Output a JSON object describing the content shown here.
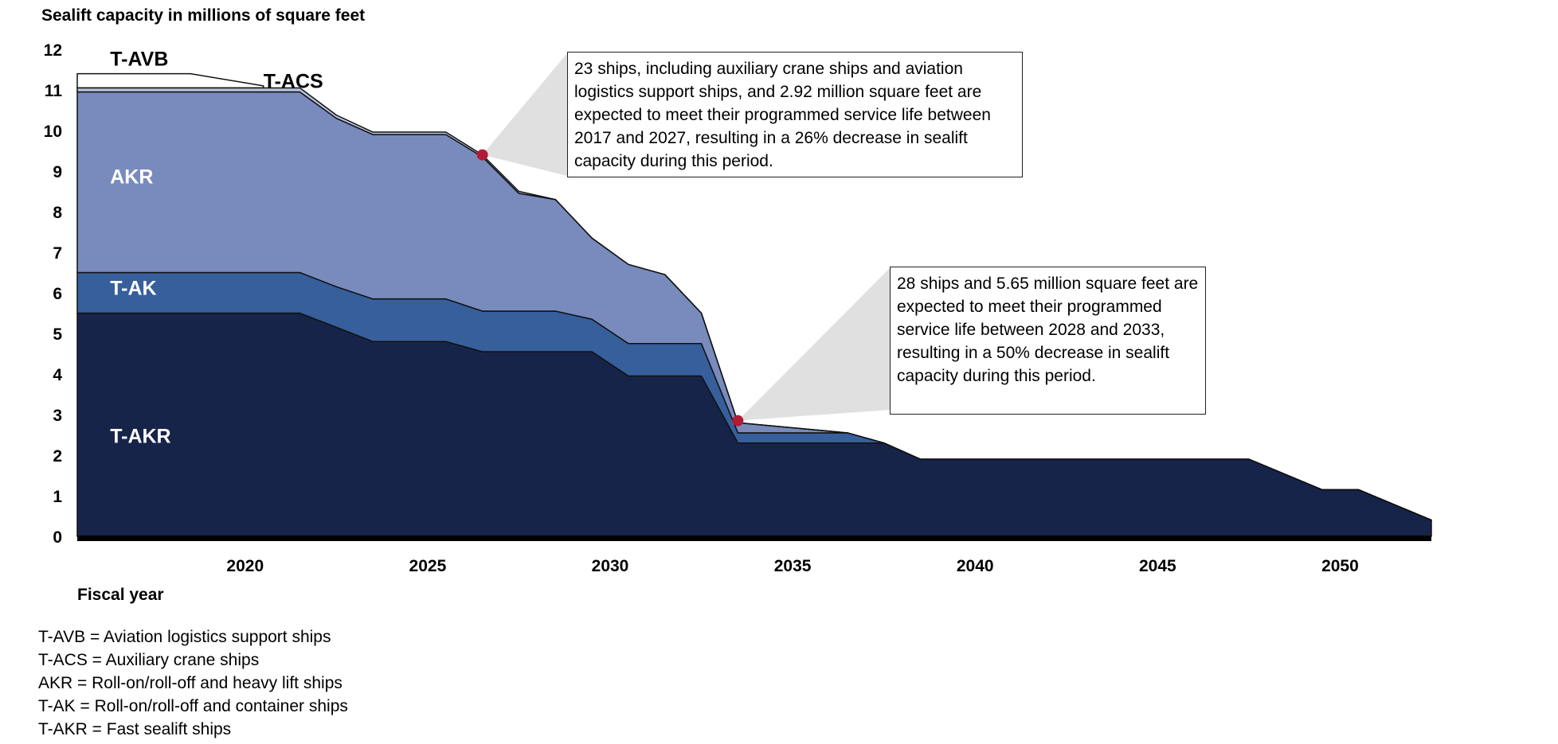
{
  "y_axis_title": "Sealift capacity in millions of square feet",
  "x_axis_title": "Fiscal year",
  "legend": [
    "T-AVB = Aviation logistics support ships",
    "T-ACS = Auxiliary crane ships",
    "AKR = Roll-on/roll-off and heavy lift ships",
    "T-AK = Roll-on/roll-off and container ships",
    "T-AKR = Fast sealift ships"
  ],
  "callouts": [
    {
      "text": "23 ships, including auxiliary crane ships and aviation logistics support ships, and 2.92 million square feet are expected to meet their programmed service life between 2017 and 2027, resulting in a 26% decrease in sealift capacity during this period.",
      "year": 2026.5,
      "value": 9.4
    },
    {
      "text": "28 ships and 5.65 million square feet are expected to meet their programmed service life between 2028 and 2033, resulting in a 50% decrease in sealift capacity during this period.",
      "year": 2033.5,
      "value": 2.85
    }
  ],
  "colors": {
    "T-AKR": "#17244a",
    "T-AK": "#365f9b",
    "AKR": "#788bbc",
    "T-ACS": "#b8c2dc",
    "T-AVB": "#ffffff",
    "marker": "#b31b34",
    "callout_fill": "#e0e0e0"
  },
  "chart_data": {
    "type": "area",
    "stacked": true,
    "title": "Sealift capacity in millions of square feet",
    "xlabel": "Fiscal year",
    "ylabel": "Sealift capacity in millions of square feet",
    "xlim": [
      2015.4,
      2052.5
    ],
    "ylim": [
      0,
      12
    ],
    "x_ticks": [
      2020,
      2025,
      2030,
      2035,
      2040,
      2045,
      2050
    ],
    "y_ticks": [
      0,
      1,
      2,
      3,
      4,
      5,
      6,
      7,
      8,
      9,
      10,
      11,
      12
    ],
    "x": [
      2015.4,
      2021.5,
      2022.5,
      2023.5,
      2025.5,
      2026.5,
      2027.5,
      2028.5,
      2029.5,
      2030.5,
      2031.5,
      2032.5,
      2033.5,
      2036.5,
      2037.5,
      2038.5,
      2047.5,
      2049.5,
      2050.5,
      2052.5
    ],
    "series": [
      {
        "name": "T-AKR",
        "values": [
          5.5,
          5.5,
          5.15,
          4.8,
          4.8,
          4.55,
          4.55,
          4.55,
          4.55,
          3.95,
          3.95,
          3.95,
          2.3,
          2.3,
          2.3,
          1.9,
          1.9,
          1.15,
          1.15,
          0.4
        ]
      },
      {
        "name": "T-AK",
        "values": [
          1.0,
          1.0,
          1.0,
          1.05,
          1.05,
          1.0,
          1.0,
          1.0,
          0.8,
          0.8,
          0.8,
          0.8,
          0.25,
          0.25,
          0.0,
          0.0,
          0.0,
          0.0,
          0.0,
          0.0
        ]
      },
      {
        "name": "AKR",
        "values": [
          4.45,
          4.45,
          4.15,
          4.05,
          4.05,
          3.8,
          2.9,
          2.75,
          2.0,
          1.95,
          1.7,
          0.75,
          0.25,
          0.0,
          0.0,
          0.0,
          0.0,
          0.0,
          0.0,
          0.0
        ]
      },
      {
        "name": "T-ACS",
        "values": [
          0.1,
          0.1,
          0.08,
          0.06,
          0.06,
          0.05,
          0.05,
          0.0,
          0.0,
          0.0,
          0.0,
          0.0,
          0.0,
          0.0,
          0.0,
          0.0,
          0.0,
          0.0,
          0.0,
          0.0
        ]
      },
      {
        "name": "T-AVB",
        "values": [
          0.3,
          0.0,
          0.0,
          0.0,
          0.0,
          0.0,
          0.0,
          0.0,
          0.0,
          0.0,
          0.0,
          0.0,
          0.0,
          0.0,
          0.0,
          0.0,
          0.0,
          0.0,
          0.0,
          0.0
        ]
      }
    ],
    "t_avb_x": [
      2015.4,
      2018.5,
      2020.5
    ],
    "t_avb_top": [
      11.4,
      11.4,
      11.1
    ],
    "area_labels": [
      {
        "text": "T-AVB",
        "color": "#000000"
      },
      {
        "text": "T-ACS",
        "color": "#000000"
      },
      {
        "text": "AKR",
        "color": "#ffffff"
      },
      {
        "text": "T-AK",
        "color": "#ffffff"
      },
      {
        "text": "T-AKR",
        "color": "#ffffff"
      }
    ]
  }
}
